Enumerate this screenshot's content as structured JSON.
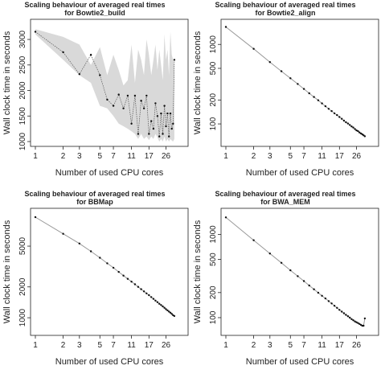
{
  "chart_data": [
    {
      "type": "line",
      "title": [
        "Scaling behaviour of averaged real times",
        "for Bowtie2_build"
      ],
      "xlabel": "Number of used CPU cores",
      "ylabel": "Wall clock time in seconds",
      "x_scale": "log",
      "y_scale": "linear",
      "xlim": [
        1,
        40
      ],
      "ylim": [
        1000,
        3300
      ],
      "x_ticks": [
        1,
        2,
        3,
        5,
        7,
        11,
        17,
        26
      ],
      "y_ticks": [
        1000,
        1500,
        2000,
        2500,
        3000
      ],
      "band_color": "#d9d9d9",
      "series": [
        {
          "x": [
            1,
            2,
            3,
            4,
            5,
            6,
            7,
            8,
            9,
            10,
            11,
            12,
            13,
            14,
            15,
            16,
            17,
            18,
            19,
            20,
            21,
            22,
            23,
            24,
            25,
            26,
            27,
            28,
            29,
            30,
            31,
            32
          ],
          "y": [
            3150,
            2750,
            2320,
            2700,
            2300,
            1820,
            1700,
            1920,
            1650,
            1900,
            1350,
            1900,
            1150,
            1800,
            1650,
            1900,
            1150,
            1400,
            1250,
            1750,
            1500,
            1100,
            1550,
            1150,
            1700,
            1300,
            1550,
            1100,
            1550,
            1250,
            1350,
            2600
          ]
        }
      ],
      "band": {
        "x": [
          1,
          2,
          3,
          4,
          5,
          6,
          7,
          8,
          9,
          10,
          11,
          12,
          13,
          14,
          15,
          16,
          17,
          18,
          19,
          20,
          21,
          22,
          23,
          24,
          25,
          26,
          27,
          28,
          29,
          30,
          31,
          32
        ],
        "upper": [
          3200,
          3050,
          2900,
          2500,
          2850,
          2300,
          2700,
          2400,
          2100,
          2200,
          2900,
          2150,
          2800,
          2600,
          2300,
          3000,
          2700,
          2300,
          2600,
          2900,
          2400,
          2800,
          2500,
          2200,
          3100,
          2600,
          2800,
          2300,
          3150,
          2700,
          2600,
          2500
        ],
        "lower": [
          3100,
          2600,
          2300,
          2150,
          1700,
          1650,
          1500,
          1350,
          1300,
          1250,
          1200,
          1150,
          1050,
          1150,
          1050,
          1100,
          1030,
          1100,
          1050,
          1150,
          1080,
          1000,
          1050,
          1000,
          1100,
          1000,
          1050,
          1000,
          1050,
          1020,
          1000,
          1050
        ]
      }
    },
    {
      "type": "line",
      "title": [
        "Scaling behaviour of averaged real times",
        "for Bowtie2_align"
      ],
      "xlabel": "Number of used CPU cores",
      "ylabel": "Wall clock time in seconds",
      "x_scale": "log",
      "y_scale": "log",
      "xlim": [
        1,
        40
      ],
      "ylim": [
        60,
        1800
      ],
      "x_ticks": [
        1,
        2,
        3,
        5,
        7,
        11,
        17,
        26
      ],
      "y_ticks": [
        100,
        200,
        500,
        1000
      ],
      "series": [
        {
          "x": [
            1,
            2,
            3,
            4,
            5,
            6,
            7,
            8,
            9,
            10,
            11,
            12,
            13,
            14,
            15,
            16,
            17,
            18,
            19,
            20,
            21,
            22,
            23,
            24,
            25,
            26,
            27,
            28,
            29,
            30,
            31,
            32
          ],
          "y": [
            1660,
            880,
            600,
            460,
            375,
            318,
            275,
            243,
            218,
            198,
            181,
            167,
            155,
            145,
            136,
            129,
            122,
            116,
            110,
            105,
            101,
            97,
            93,
            90,
            86,
            83,
            81,
            78,
            76,
            74,
            72,
            70
          ]
        }
      ]
    },
    {
      "type": "line",
      "title": [
        "Scaling behaviour of averaged real times",
        "for BBMap"
      ],
      "xlabel": "Number of used CPU cores",
      "ylabel": "Wall clock time in seconds",
      "x_scale": "log",
      "y_scale": "log",
      "xlim": [
        1,
        40
      ],
      "ylim": [
        750,
        10500
      ],
      "x_ticks": [
        1,
        2,
        3,
        5,
        7,
        11,
        17,
        26
      ],
      "y_ticks": [
        1000,
        2000,
        5000
      ],
      "series": [
        {
          "x": [
            1,
            2,
            3,
            4,
            5,
            6,
            7,
            8,
            9,
            10,
            11,
            12,
            13,
            14,
            15,
            16,
            17,
            18,
            19,
            20,
            21,
            22,
            23,
            24,
            25,
            26,
            27,
            28,
            29,
            30,
            31,
            32
          ],
          "y": [
            9600,
            6600,
            5300,
            4450,
            3850,
            3400,
            3080,
            2800,
            2580,
            2400,
            2250,
            2120,
            2000,
            1900,
            1810,
            1730,
            1660,
            1590,
            1530,
            1470,
            1420,
            1370,
            1330,
            1290,
            1250,
            1210,
            1180,
            1150,
            1120,
            1090,
            1060,
            1040
          ]
        }
      ]
    },
    {
      "type": "line",
      "title": [
        "Scaling behaviour of averaged real times",
        "for BWA_MEM"
      ],
      "xlabel": "Number of used CPU cores",
      "ylabel": "Wall clock time in seconds",
      "x_scale": "log",
      "y_scale": "log",
      "xlim": [
        1,
        40
      ],
      "ylim": [
        70,
        1800
      ],
      "x_ticks": [
        1,
        2,
        3,
        5,
        7,
        11,
        17,
        26
      ],
      "y_ticks": [
        100,
        200,
        500,
        1000
      ],
      "series": [
        {
          "x": [
            1,
            2,
            3,
            4,
            5,
            6,
            7,
            8,
            9,
            10,
            11,
            12,
            13,
            14,
            15,
            16,
            17,
            18,
            19,
            20,
            21,
            22,
            23,
            24,
            25,
            26,
            27,
            28,
            29,
            30,
            31,
            32
          ],
          "y": [
            1600,
            850,
            590,
            455,
            370,
            315,
            275,
            243,
            219,
            199,
            183,
            170,
            158,
            148,
            139,
            131,
            124,
            118,
            113,
            108,
            104,
            100,
            96,
            93,
            90,
            88,
            86,
            84,
            82,
            80,
            80,
            98
          ]
        }
      ]
    }
  ]
}
